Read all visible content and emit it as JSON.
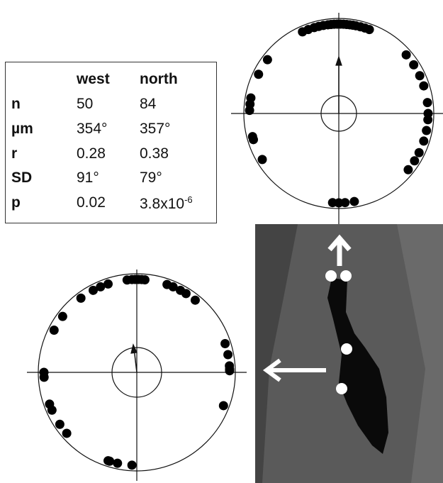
{
  "table": {
    "columns": [
      "west",
      "north"
    ],
    "rows": [
      [
        "n",
        "50",
        "84"
      ],
      [
        "µm",
        "354°",
        "357°"
      ],
      [
        "r",
        "0.28",
        "0.38"
      ],
      [
        "SD",
        "91°",
        "79°"
      ],
      [
        "p",
        "0.02"
      ]
    ],
    "p_north": {
      "base": "3.8x10",
      "exponent": "-6"
    }
  },
  "north_plot": {
    "bearings": [
      -24,
      -20,
      -16,
      -13,
      -10,
      -7,
      -5,
      -3,
      -1,
      1,
      3,
      5,
      7,
      9,
      11,
      14,
      17,
      20,
      307,
      296,
      280,
      276,
      272,
      255,
      253,
      239,
      49,
      57,
      65,
      72,
      83,
      90,
      94,
      101,
      108,
      116,
      122,
      129,
      176,
      170,
      180,
      184
    ]
  },
  "west_plot": {
    "bearings": [
      -6,
      -3,
      -1,
      1,
      3,
      5,
      342,
      337,
      332,
      323,
      307,
      297,
      270,
      267,
      250,
      246,
      236,
      229,
      197,
      192,
      198,
      183,
      19,
      23,
      28,
      32,
      39,
      72,
      79,
      86,
      89,
      88,
      111
    ]
  }
}
